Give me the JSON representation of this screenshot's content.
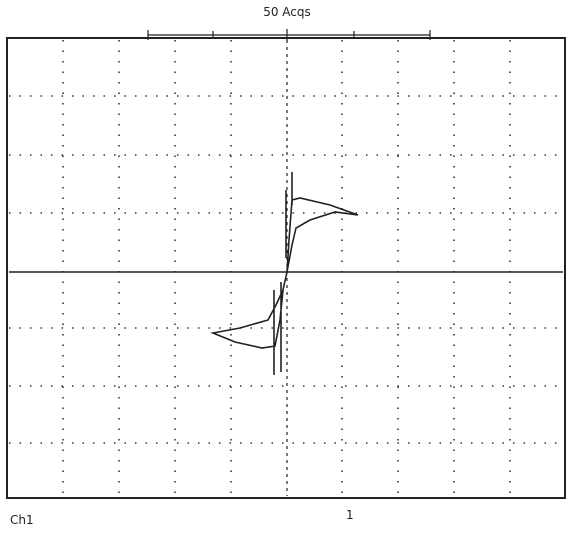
{
  "header": {
    "acquisition": "50 Acqs"
  },
  "footer": {
    "channel": "Ch1",
    "marker": "1"
  }
}
